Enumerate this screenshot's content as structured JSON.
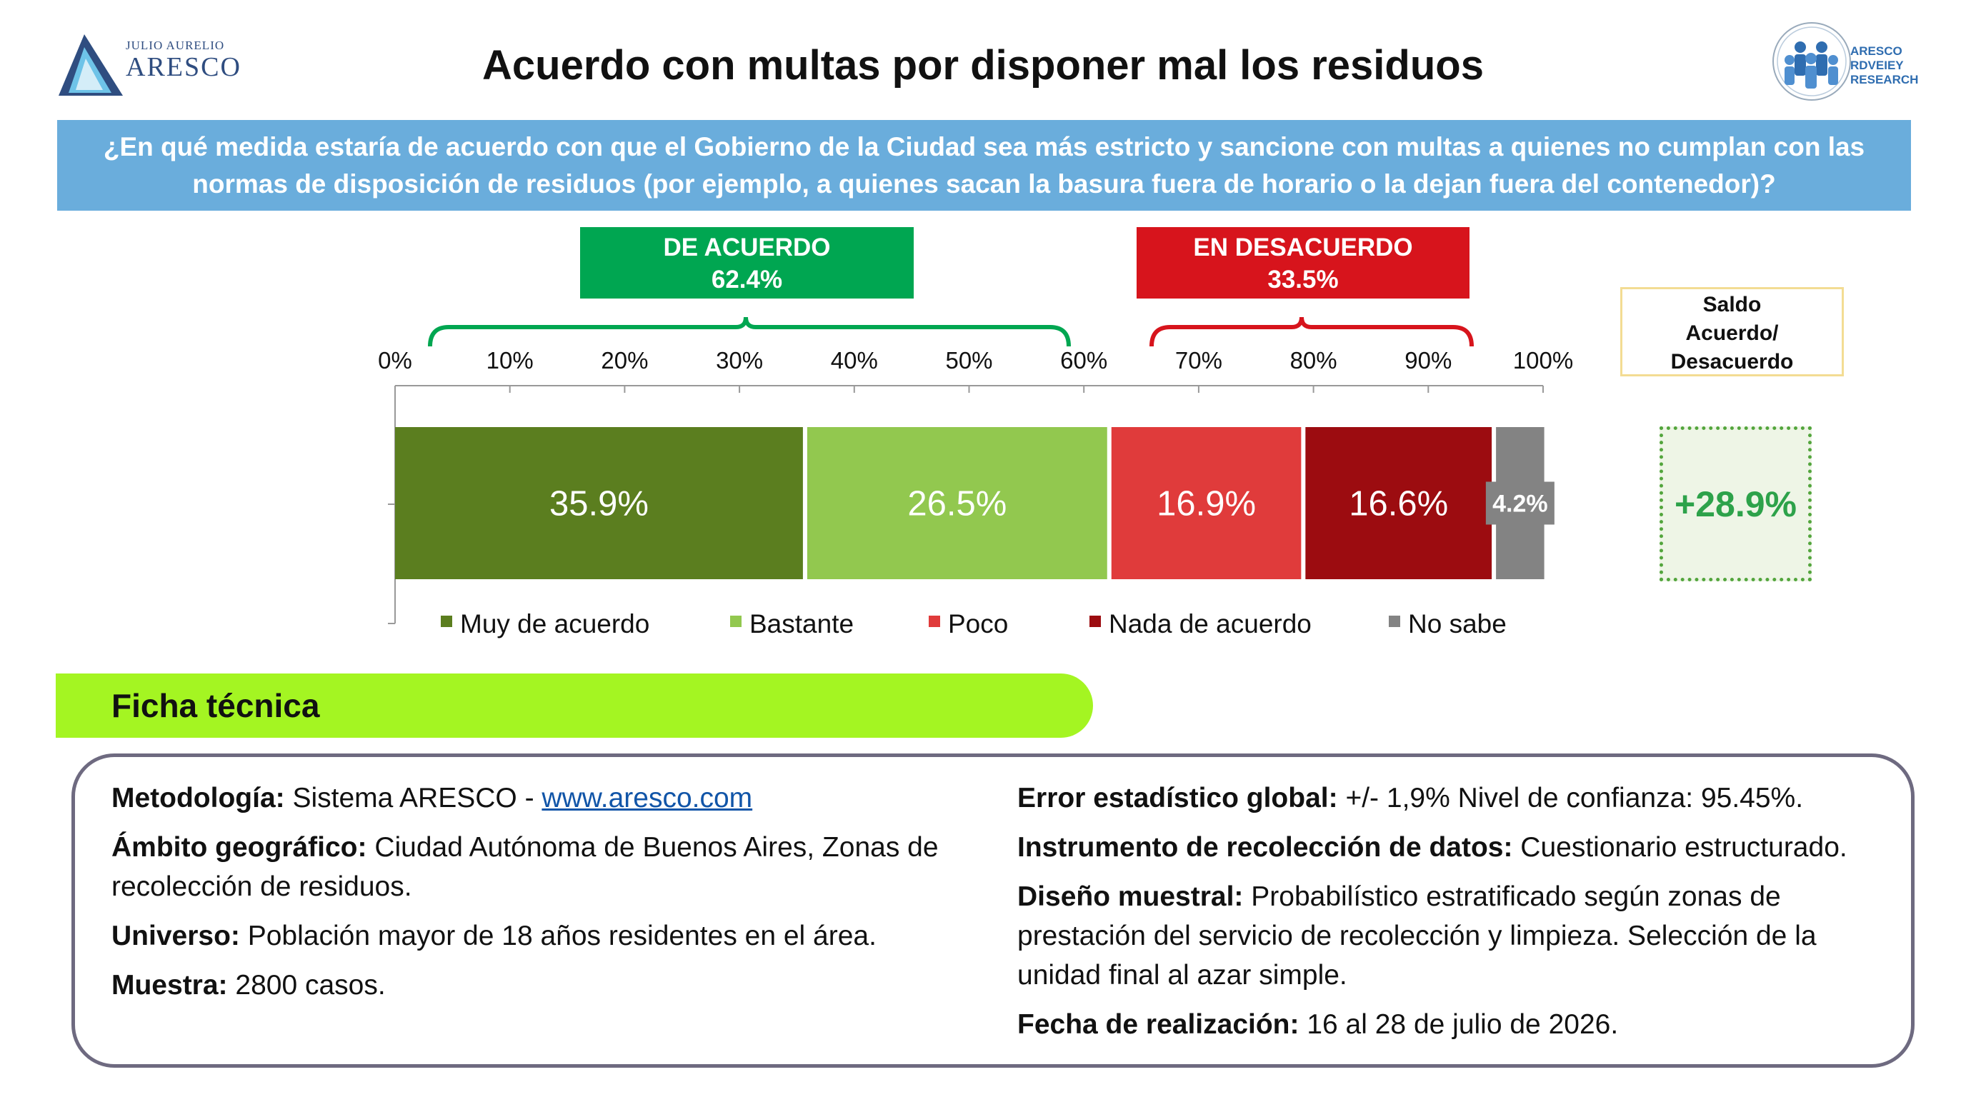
{
  "logo_left": {
    "small_text": "JULIO AURELIO",
    "big_text": "ARESCO"
  },
  "logo_right": {
    "lines": [
      "ARESCO",
      "RDVEIEY",
      "RESEARCH"
    ]
  },
  "title": "Acuerdo con multas por disponer mal los residuos",
  "question": "¿En qué medida estaría de acuerdo con que el Gobierno de la Ciudad sea más estricto y sancione con multas a quienes no cumplan con las normas de disposición de residuos (por ejemplo, a quienes sacan la basura fuera de horario o la dejan fuera del contenedor)?",
  "groups": {
    "agree": {
      "label": "DE ACUERDO",
      "value": "62.4%",
      "color": "#00a651"
    },
    "disagree": {
      "label": "EN DESACUERDO",
      "value": "33.5%",
      "color": "#d7141c"
    }
  },
  "balance": {
    "header_lines": [
      "Saldo",
      "Acuerdo/",
      "Desacuerdo"
    ],
    "value": "+28.9%"
  },
  "chart_data": {
    "type": "bar",
    "orientation": "horizontal",
    "stacked": true,
    "categories": [
      ""
    ],
    "xlim": [
      0,
      100
    ],
    "x_ticks": [
      "0%",
      "10%",
      "20%",
      "30%",
      "40%",
      "50%",
      "60%",
      "70%",
      "80%",
      "90%",
      "100%"
    ],
    "series": [
      {
        "name": "Muy de acuerdo",
        "values": [
          35.9
        ],
        "label": "35.9%",
        "color": "#5b7e1f"
      },
      {
        "name": "Bastante",
        "values": [
          26.5
        ],
        "label": "26.5%",
        "color": "#92c84f"
      },
      {
        "name": "Poco",
        "values": [
          16.9
        ],
        "label": "16.9%",
        "color": "#e03b3b"
      },
      {
        "name": "Nada de acuerdo",
        "values": [
          16.6
        ],
        "label": "16.6%",
        "color": "#9c0c10"
      },
      {
        "name": "No sabe",
        "values": [
          4.2
        ],
        "label": "4.2%",
        "color": "#838383"
      }
    ],
    "legend_position": "bottom",
    "grid": false
  },
  "ficha": {
    "title": "Ficha técnica",
    "left": [
      {
        "label": "Metodología:",
        "text": " Sistema ARESCO - ",
        "link": "www.aresco.com"
      },
      {
        "label": "Ámbito geográfico:",
        "text": " Ciudad Autónoma de Buenos Aires, Zonas de recolección de residuos."
      },
      {
        "label": "Universo:",
        "text": " Población mayor de 18 años residentes en el área."
      },
      {
        "label": "Muestra:",
        "text": " 2800 casos."
      }
    ],
    "right": [
      {
        "label": "Error estadístico global:",
        "text": " +/- 1,9% Nivel de confianza: 95.45%."
      },
      {
        "label": "Instrumento de recolección de datos:",
        "text": " Cuestionario estructurado."
      },
      {
        "label": "Diseño muestral:",
        "text": " Probabilístico estratificado según zonas de prestación del servicio de recolección y limpieza. Selección de la unidad final al azar simple."
      },
      {
        "label": "Fecha de realización:",
        "text": " 16 al 28 de julio de 2026."
      }
    ]
  }
}
